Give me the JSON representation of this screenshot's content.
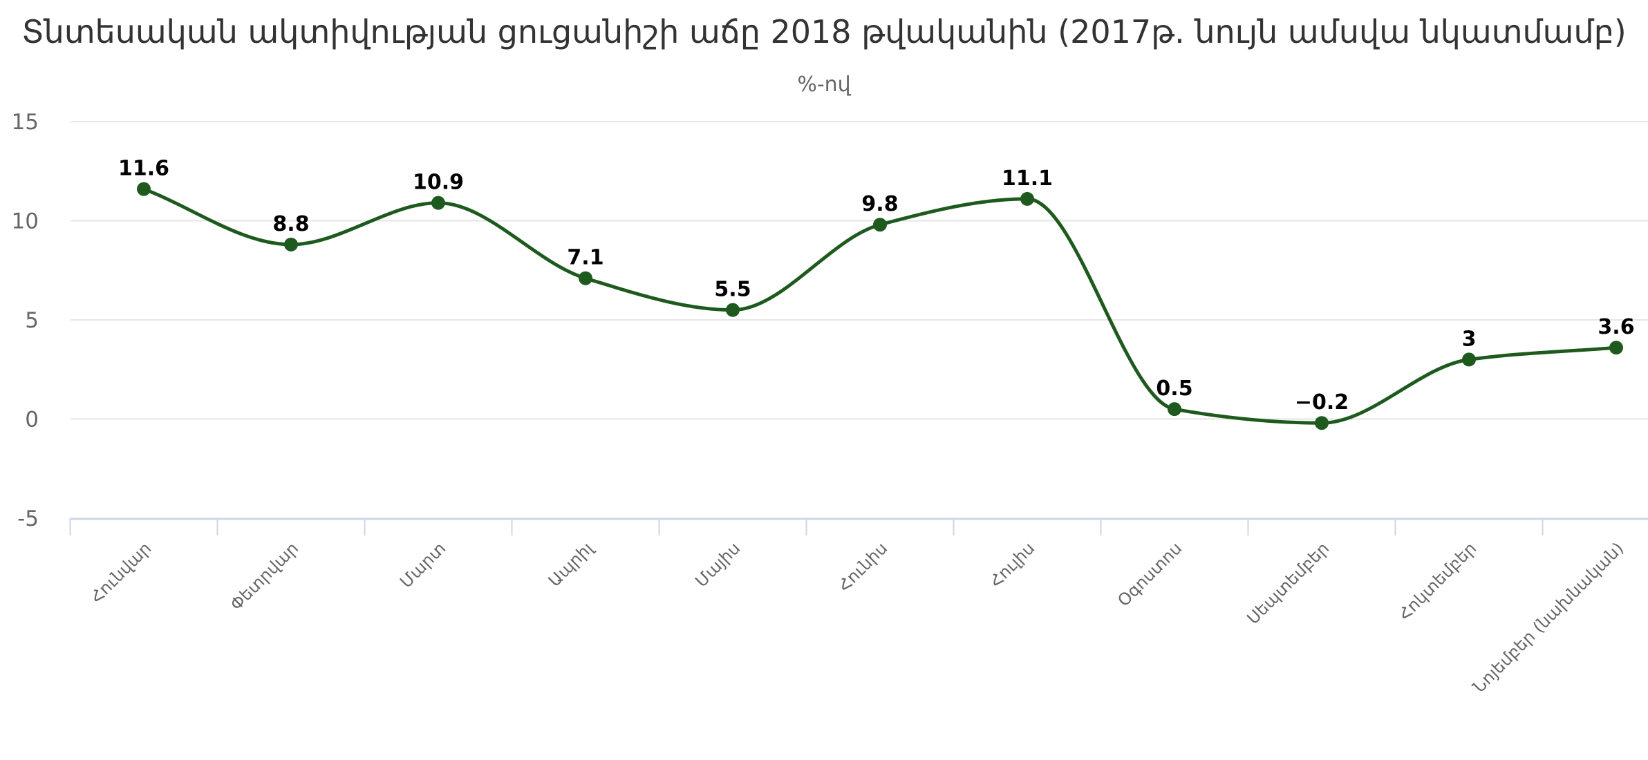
{
  "colors": {
    "series": "#1e5a1e",
    "grid": "#e6e6e6",
    "axis": "#ccd6eb"
  },
  "chart_data": {
    "type": "line",
    "title": "Տնտեսական ակտիվության ցուցանիշի աճը 2018 թվականին (2017թ. նույն ամսվա նկատմամբ)",
    "subtitle": "%-ով",
    "xlabel": "",
    "ylabel": "",
    "ylim": [
      -5,
      15
    ],
    "y_ticks": [
      "-5",
      "0",
      "5",
      "10",
      "15"
    ],
    "y_tick_values": [
      -5,
      0,
      5,
      10,
      15
    ],
    "grid": true,
    "legend": "none",
    "smooth": true,
    "categories": [
      "Հունվար",
      "Փետրվար",
      "Մարտ",
      "Ապրիլ",
      "Մայիս",
      "Հունիս",
      "Հուլիս",
      "Օգոստոս",
      "Սեպտեմբեր",
      "Հոկտեմբեր",
      "Նոյեմբեր (նախնական)"
    ],
    "series": [
      {
        "values": [
          11.6,
          8.8,
          10.9,
          7.1,
          5.5,
          9.8,
          11.1,
          0.5,
          -0.2,
          3.0,
          3.6
        ],
        "data_labels": [
          "11.6",
          "8.8",
          "10.9",
          "7.1",
          "5.5",
          "9.8",
          "11.1",
          "0.5",
          "−0.2",
          "3",
          "3.6"
        ]
      }
    ]
  }
}
